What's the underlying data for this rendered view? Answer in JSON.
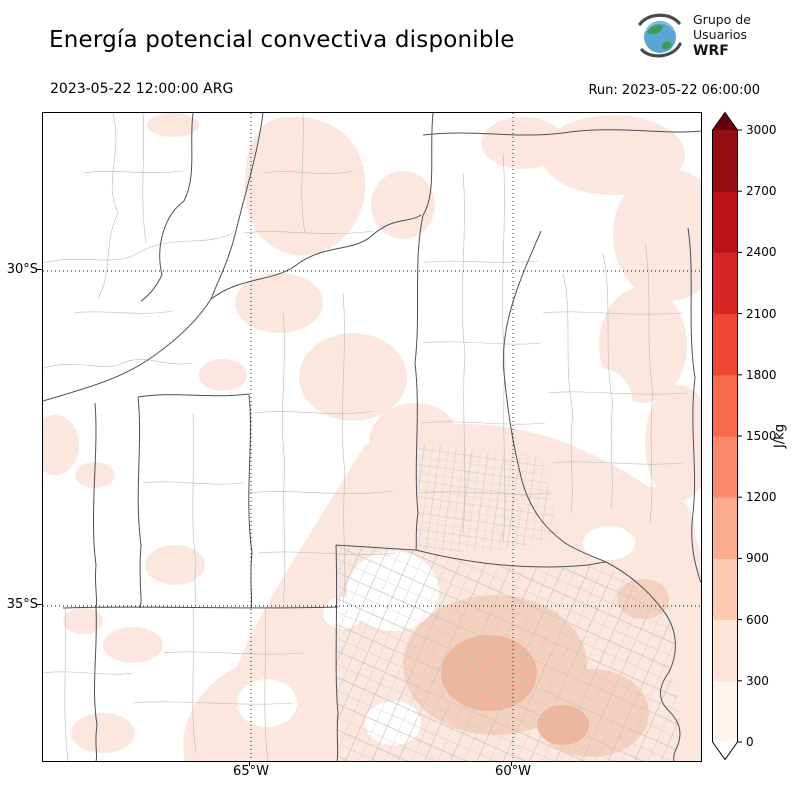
{
  "header": {
    "title": "Energía potencial convectiva disponible",
    "valid_time": "2023-05-22 12:00:00 ARG",
    "run_label": "Run: 2023-05-22 06:00:00",
    "logo": {
      "line1": "Grupo de",
      "line2": "Usuarios",
      "line3": "WRF"
    }
  },
  "axes": {
    "y_ticks": [
      "30°S",
      "35°S"
    ],
    "x_ticks": [
      "65°W",
      "60°W"
    ]
  },
  "colorbar": {
    "unit": "J/kg",
    "ticks": [
      "3000",
      "2700",
      "2400",
      "2100",
      "1800",
      "1500",
      "1200",
      "900",
      "600",
      "300",
      "0"
    ],
    "segments_bottom_to_top": [
      "#fff5f0",
      "#fee3d7",
      "#fdc9b3",
      "#fcab8f",
      "#fc8a6a",
      "#f9694c",
      "#ef4533",
      "#d92523",
      "#bb151a",
      "#980c13"
    ],
    "over_color": "#67000d",
    "under_color": "#ffffff"
  },
  "map_shading_palette": {
    "zero": "#ffffff",
    "low": "#fbe7dd",
    "moderate": "#f6d0bf",
    "high": "#efb69c"
  },
  "chart_data": {
    "type": "heatmap",
    "title": "Energía potencial convectiva disponible",
    "variable": "CAPE (convective available potential energy)",
    "units": "J/kg",
    "valid_time": "2023-05-22 12:00:00 ARG",
    "model_run": "2023-05-22 06:00:00",
    "region": "Central Argentina (approx. 69°W–56°W, 27.5°S–37.5°S)",
    "x_tick_labels": [
      "65°W",
      "60°W"
    ],
    "y_tick_labels": [
      "30°S",
      "35°S"
    ],
    "colorbar_levels": [
      0,
      300,
      600,
      900,
      1200,
      1500,
      1800,
      2100,
      2400,
      2700,
      3000
    ],
    "grid": "dotted lat/lon graticule",
    "legend_position": "right vertical colorbar with pointed over/under arrows",
    "field_summary": "Mostly 0–300 J/kg (pale pink) over northern and eastern provinces; local maximum about 300–600 J/kg over central-southern Buenos Aires province; near 0 (white) over western areas."
  }
}
